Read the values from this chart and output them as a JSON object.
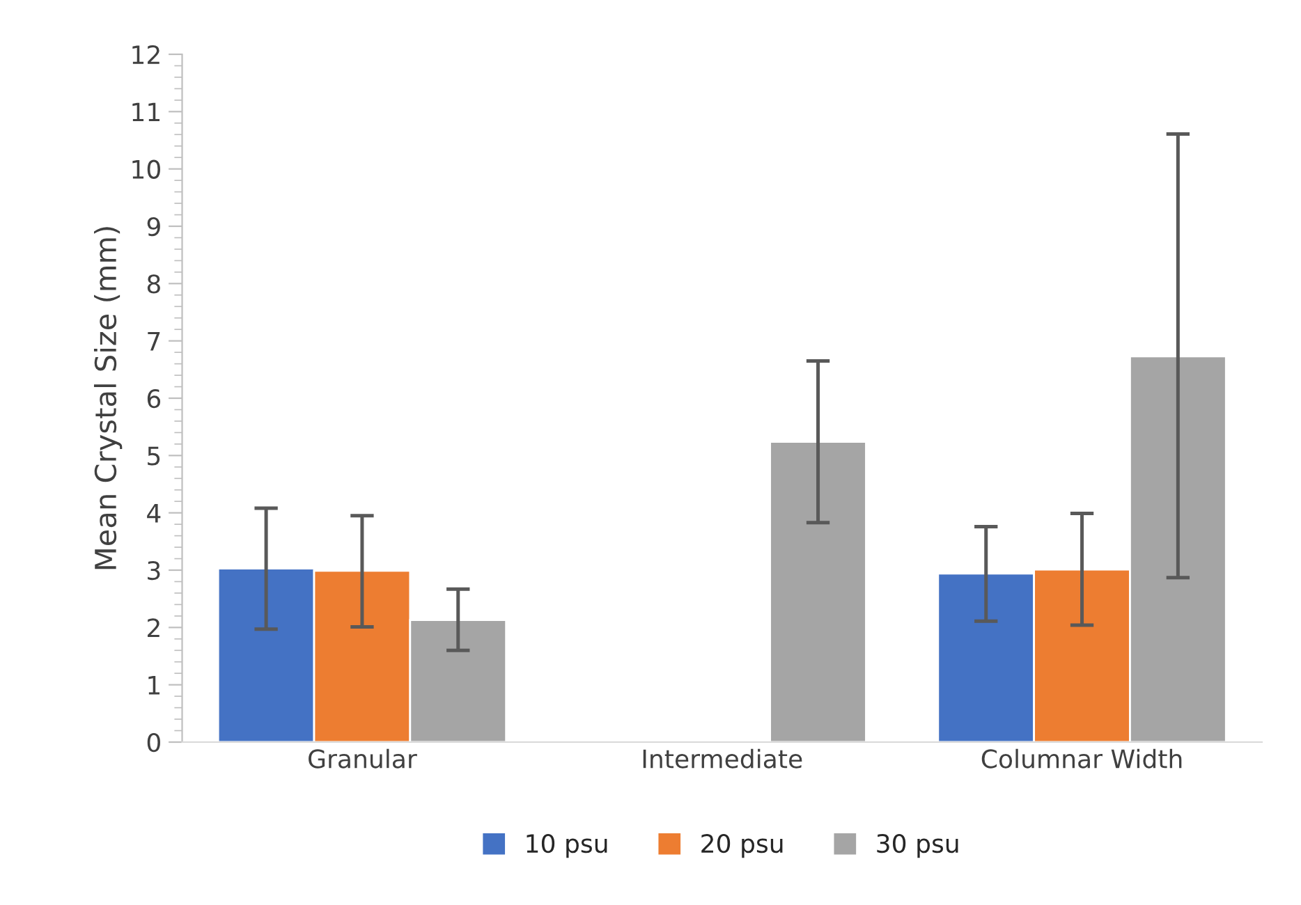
{
  "chart_data": {
    "type": "bar",
    "ylabel": "Mean Crystal Size (mm)",
    "categories": [
      "Granular",
      "Intermediate",
      "Columnar Width"
    ],
    "series": [
      {
        "name": "10 psu",
        "color": "#4472c4",
        "values": [
          3.03,
          null,
          2.94
        ],
        "errors": [
          [
            1.97,
            4.08
          ],
          null,
          [
            2.11,
            3.76
          ]
        ]
      },
      {
        "name": "20 psu",
        "color": "#ed7d31",
        "values": [
          2.99,
          null,
          3.01
        ],
        "errors": [
          [
            2.01,
            3.95
          ],
          null,
          [
            2.04,
            3.99
          ]
        ]
      },
      {
        "name": "30 psu",
        "color": "#a5a5a5",
        "values": [
          2.13,
          5.24,
          6.73
        ],
        "errors": [
          [
            1.6,
            2.67
          ],
          [
            3.83,
            6.65
          ],
          [
            2.87,
            10.61
          ]
        ]
      }
    ],
    "ylim": [
      0,
      12
    ],
    "yticks": [
      0,
      1,
      2,
      3,
      4,
      5,
      6,
      7,
      8,
      9,
      10,
      11,
      12
    ],
    "grid": false,
    "legend": "bottom"
  }
}
